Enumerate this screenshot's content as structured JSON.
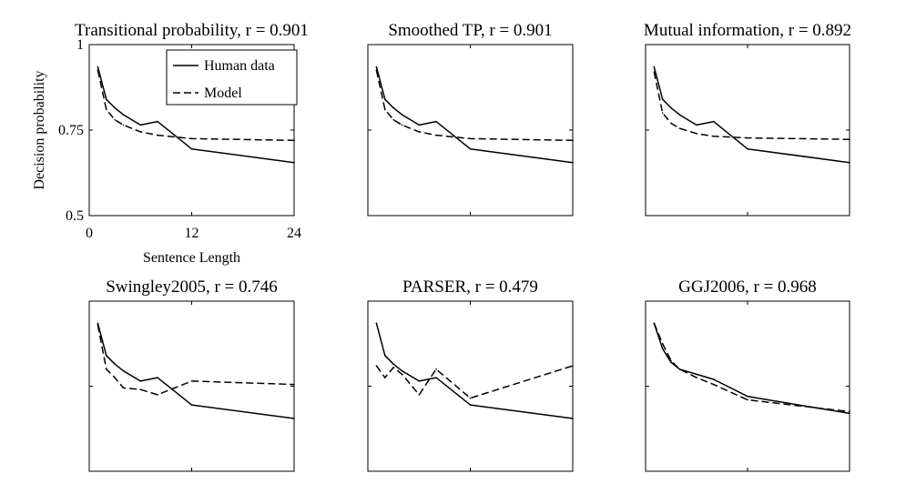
{
  "chart_data": [
    {
      "type": "line",
      "title": "Transitional probability, r = 0.901",
      "xlabel": "Sentence Length",
      "ylabel": "Decision probability",
      "xlim": [
        0,
        24
      ],
      "ylim": [
        0.5,
        1
      ],
      "xticks": [
        0,
        12,
        24
      ],
      "yticks": [
        0.5,
        0.75,
        1
      ],
      "xtick_labels": [
        "0",
        "12",
        "24"
      ],
      "ytick_labels": [
        "0.5",
        "0.75",
        "1"
      ],
      "legend": {
        "position": "top-right",
        "entries": [
          "Human data",
          "Model"
        ]
      },
      "series": [
        {
          "name": "Human data",
          "style": "solid",
          "x": [
            1,
            2,
            3,
            4,
            6,
            8,
            12,
            24
          ],
          "y": [
            0.935,
            0.84,
            0.815,
            0.795,
            0.765,
            0.775,
            0.695,
            0.655
          ]
        },
        {
          "name": "Model",
          "style": "dashed",
          "x": [
            1,
            2,
            3,
            4,
            6,
            8,
            12,
            24
          ],
          "y": [
            0.925,
            0.81,
            0.78,
            0.765,
            0.745,
            0.735,
            0.725,
            0.72
          ]
        }
      ]
    },
    {
      "type": "line",
      "title": "Smoothed TP, r = 0.901",
      "xlim": [
        0,
        24
      ],
      "ylim": [
        0.5,
        1
      ],
      "xticks": [
        0,
        12,
        24
      ],
      "yticks": [
        0.5,
        0.75,
        1
      ],
      "series": [
        {
          "name": "Human data",
          "style": "solid",
          "x": [
            1,
            2,
            3,
            4,
            6,
            8,
            12,
            24
          ],
          "y": [
            0.935,
            0.84,
            0.815,
            0.795,
            0.765,
            0.775,
            0.695,
            0.655
          ]
        },
        {
          "name": "Model",
          "style": "dashed",
          "x": [
            1,
            2,
            3,
            4,
            6,
            8,
            12,
            24
          ],
          "y": [
            0.925,
            0.81,
            0.78,
            0.765,
            0.745,
            0.735,
            0.725,
            0.72
          ]
        }
      ]
    },
    {
      "type": "line",
      "title": "Mutual information, r = 0.892",
      "xlim": [
        0,
        24
      ],
      "ylim": [
        0.5,
        1
      ],
      "xticks": [
        0,
        12,
        24
      ],
      "yticks": [
        0.5,
        0.75,
        1
      ],
      "series": [
        {
          "name": "Human data",
          "style": "solid",
          "x": [
            1,
            2,
            3,
            4,
            6,
            8,
            12,
            24
          ],
          "y": [
            0.935,
            0.84,
            0.815,
            0.795,
            0.765,
            0.775,
            0.695,
            0.655
          ]
        },
        {
          "name": "Model",
          "style": "dashed",
          "x": [
            1,
            2,
            3,
            4,
            6,
            8,
            12,
            24
          ],
          "y": [
            0.92,
            0.8,
            0.77,
            0.755,
            0.74,
            0.732,
            0.727,
            0.723
          ]
        }
      ]
    },
    {
      "type": "line",
      "title": "Swingley2005, r = 0.746",
      "xlim": [
        0,
        24
      ],
      "ylim": [
        0.5,
        1
      ],
      "xticks": [
        0,
        12,
        24
      ],
      "yticks": [
        0.5,
        0.75,
        1
      ],
      "series": [
        {
          "name": "Human data",
          "style": "solid",
          "x": [
            1,
            2,
            3,
            4,
            6,
            8,
            12,
            24
          ],
          "y": [
            0.935,
            0.84,
            0.815,
            0.795,
            0.765,
            0.775,
            0.695,
            0.655
          ]
        },
        {
          "name": "Model",
          "style": "dashed",
          "x": [
            1,
            2,
            3,
            4,
            6,
            8,
            12,
            24
          ],
          "y": [
            0.93,
            0.8,
            0.775,
            0.745,
            0.74,
            0.725,
            0.765,
            0.755
          ]
        }
      ]
    },
    {
      "type": "line",
      "title": "PARSER, r = 0.479",
      "xlim": [
        0,
        24
      ],
      "ylim": [
        0.5,
        1
      ],
      "xticks": [
        0,
        12,
        24
      ],
      "yticks": [
        0.5,
        0.75,
        1
      ],
      "series": [
        {
          "name": "Human data",
          "style": "solid",
          "x": [
            1,
            2,
            3,
            4,
            6,
            8,
            12,
            24
          ],
          "y": [
            0.935,
            0.84,
            0.815,
            0.795,
            0.765,
            0.775,
            0.695,
            0.655
          ]
        },
        {
          "name": "Model",
          "style": "dashed",
          "x": [
            1,
            2,
            3,
            4,
            6,
            8,
            12,
            24
          ],
          "y": [
            0.81,
            0.775,
            0.805,
            0.785,
            0.725,
            0.8,
            0.715,
            0.81
          ]
        }
      ]
    },
    {
      "type": "line",
      "title": "GGJ2006, r = 0.968",
      "xlim": [
        0,
        24
      ],
      "ylim": [
        0.5,
        1
      ],
      "xticks": [
        0,
        12,
        24
      ],
      "yticks": [
        0.5,
        0.75,
        1
      ],
      "series": [
        {
          "name": "Human data",
          "style": "solid",
          "x": [
            1,
            2,
            3,
            4,
            6,
            8,
            12,
            24
          ],
          "y": [
            0.935,
            0.86,
            0.82,
            0.8,
            0.785,
            0.77,
            0.72,
            0.67
          ]
        },
        {
          "name": "Model",
          "style": "dashed",
          "x": [
            1,
            2,
            3,
            4,
            6,
            8,
            12,
            24
          ],
          "y": [
            0.935,
            0.875,
            0.825,
            0.8,
            0.775,
            0.755,
            0.71,
            0.675
          ]
        }
      ]
    }
  ]
}
